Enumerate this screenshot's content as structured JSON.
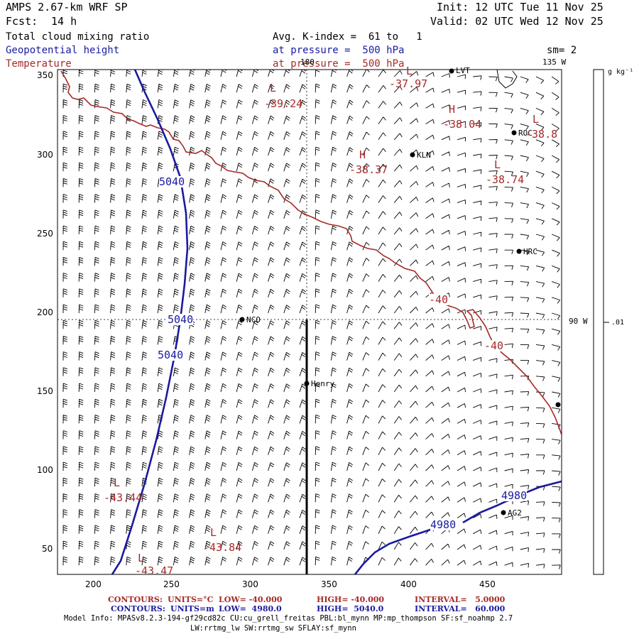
{
  "header": {
    "model": "AMPS 2.67-km WRF SP",
    "fcst_label": "Fcst:",
    "fcst_value": "14 h",
    "init": "Init: 12 UTC Tue 11 Nov 25",
    "valid": "Valid: 02 UTC Wed 12 Nov 25",
    "field_cloud": "Total cloud mixing ratio",
    "field_height": "Geopotential height",
    "field_temp": "Temperature",
    "kindex": "Avg. K-index =  61 to   1",
    "pressure1": "at pressure =  500 hPa",
    "pressure2": "at pressure =  500 hPa",
    "sm": "sm= 2"
  },
  "colors": {
    "height": "#1a1aa0",
    "temperature": "#a52a2a",
    "text": "#000000"
  },
  "axes": {
    "x_ticks": [
      "200",
      "250",
      "300",
      "350",
      "400",
      "450"
    ],
    "y_ticks": [
      "350",
      "300",
      "250",
      "200",
      "150",
      "100",
      "50"
    ],
    "lon_180": "180",
    "lon_135": "135 W",
    "lon_90": "90 W"
  },
  "colorbar": {
    "unit": "g kg⁻¹",
    "value": ".01"
  },
  "labels": {
    "height": [
      {
        "text": "5040"
      },
      {
        "text": "5040"
      },
      {
        "text": "5040"
      },
      {
        "text": "4980"
      },
      {
        "text": "4980"
      }
    ],
    "temperature": [
      {
        "text": "-40"
      },
      {
        "text": "-40"
      }
    ],
    "extrema": [
      {
        "type": "L",
        "value": "-39.24"
      },
      {
        "type": "L",
        "value": "-37.97"
      },
      {
        "type": "H",
        "value": "-38.04"
      },
      {
        "type": "L",
        "value": "-38.8"
      },
      {
        "type": "H",
        "value": "-38.37"
      },
      {
        "type": "L",
        "value": "-38.74"
      },
      {
        "type": "L",
        "value": "-43.44"
      },
      {
        "type": "L",
        "value": "-43.84"
      },
      {
        "type": "L",
        "value": "-43.47"
      }
    ]
  },
  "stations": [
    "LVT",
    "ROC",
    "KLN",
    "HRC",
    "NCO",
    "Henry",
    "AG2"
  ],
  "footer": {
    "line1_lead": "CONTOURS:",
    "line1_units": "UNITS=°C",
    "line1_low": "LOW= -40.000",
    "line1_high": "HIGH= -40.000",
    "line1_int": "INTERVAL=   5.0000",
    "line2_lead": "CONTOURS:",
    "line2_units": "UNITS=m",
    "line2_low": "LOW=  4980.0",
    "line2_high": "HIGH=  5040.0",
    "line2_int": "INTERVAL=   60.000",
    "model_info": "Model Info: MPASv8.2.3-194-gf29cd82c CU:cu_grell_freitas PBL:bl_mynn MP:mp_thompson SF:sf_noahmp 2.7",
    "model_info2": "LW:rrtmg_lw SW:rrtmg_sw SFLAY:sf_mynn"
  }
}
